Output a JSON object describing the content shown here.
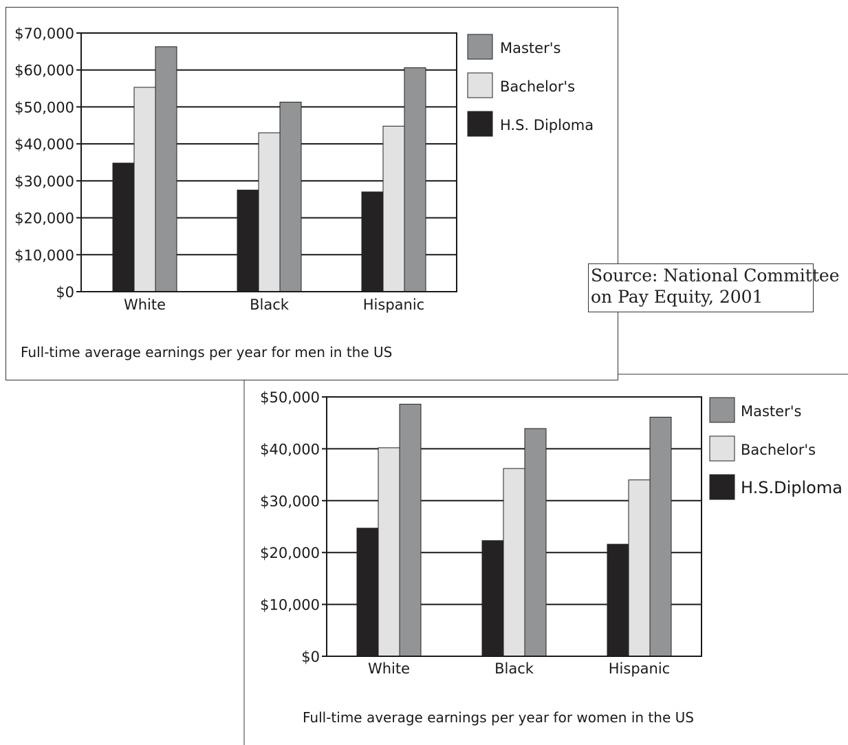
{
  "source": {
    "line1": "Source: National Committee",
    "line2": "on Pay Equity, 2001"
  },
  "colors": {
    "hs_diploma": "#252223",
    "bachelors": "#e2e2e3",
    "masters": "#939496",
    "grid": "#1a1a1a"
  },
  "chart_data": [
    {
      "type": "bar",
      "title": "Full-time average earnings per year for men in the US",
      "categories": [
        "White",
        "Black",
        "Hispanic"
      ],
      "series": [
        {
          "name": "H.S. Diploma",
          "values": [
            34800,
            27500,
            27000
          ]
        },
        {
          "name": "Bachelor's",
          "values": [
            55300,
            43000,
            44800
          ]
        },
        {
          "name": "Master's",
          "values": [
            66300,
            51300,
            60600
          ]
        }
      ],
      "yticks": [
        "$0",
        "$10,000",
        "$20,000",
        "$30,000",
        "$40,000",
        "$50,000",
        "$60,000",
        "$70,000"
      ],
      "ylim": [
        0,
        70000
      ],
      "legend": [
        "Master's",
        "Bachelor's",
        "H.S. Diploma"
      ],
      "grid": true,
      "legend_position": "right"
    },
    {
      "type": "bar",
      "title": "Full-time average earnings per year for women in the US",
      "categories": [
        "White",
        "Black",
        "Hispanic"
      ],
      "series": [
        {
          "name": "H.S. Diploma",
          "values": [
            24700,
            22300,
            21600
          ]
        },
        {
          "name": "Bachelor's",
          "values": [
            40200,
            36200,
            34000
          ]
        },
        {
          "name": "Master's",
          "values": [
            48600,
            43900,
            46100
          ]
        }
      ],
      "yticks": [
        "$0",
        "$10,000",
        "$20,000",
        "$30,000",
        "$40,000",
        "$50,000"
      ],
      "ylim": [
        0,
        50000
      ],
      "legend": [
        "Master's",
        "Bachelor's",
        "H.S.Diploma"
      ],
      "grid": true,
      "legend_position": "right"
    }
  ]
}
